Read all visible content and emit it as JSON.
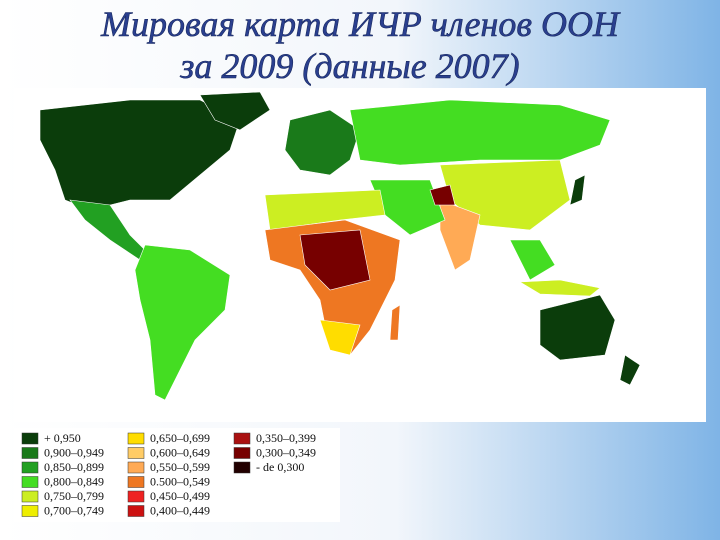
{
  "title_lines": [
    "Мировая карта ИЧР членов ООН",
    "за 2009 (данные 2007)"
  ],
  "legend": [
    {
      "label": "+ 0,950",
      "color": "#0b3d0b"
    },
    {
      "label": "0,900–0,949",
      "color": "#1a7a1a"
    },
    {
      "label": "0,850–0,899",
      "color": "#22a022"
    },
    {
      "label": "0,800–0,849",
      "color": "#44dd22"
    },
    {
      "label": "0,750–0,799",
      "color": "#ccee22"
    },
    {
      "label": "0,700–0,749",
      "color": "#eeee00"
    },
    {
      "label": "0,650–0,699",
      "color": "#ffdd00"
    },
    {
      "label": "0,600–0,649",
      "color": "#ffcc66"
    },
    {
      "label": "0,550–0,599",
      "color": "#ffaa55"
    },
    {
      "label": "0.500–0,549",
      "color": "#ee7722"
    },
    {
      "label": "0,450–0,499",
      "color": "#ee2222"
    },
    {
      "label": "0,400–0,449",
      "color": "#cc1111"
    },
    {
      "label": "0,350–0,399",
      "color": "#aa1111"
    },
    {
      "label": "0,300–0,349",
      "color": "#770000"
    },
    {
      "label": "- de 0,300",
      "color": "#220000"
    }
  ]
}
